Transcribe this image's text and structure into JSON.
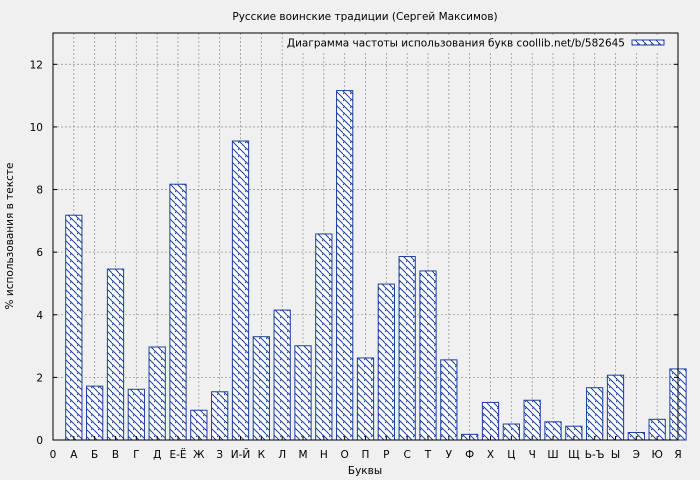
{
  "chart_data": {
    "type": "bar",
    "title": "Русские воинские традиции (Сергей Максимов)",
    "xlabel": "Буквы",
    "ylabel": "% использования в тексте",
    "legend": {
      "label": "Диаграмма частоты использования букв coollib.net/b/582645",
      "position": "top-right"
    },
    "x_first_tick": "0",
    "ylim": [
      0,
      13
    ],
    "yticks": [
      0,
      2,
      4,
      6,
      8,
      10,
      12
    ],
    "grid": true,
    "categories": [
      "А",
      "Б",
      "В",
      "Г",
      "Д",
      "Е-Ё",
      "Ж",
      "З",
      "И-Й",
      "К",
      "Л",
      "М",
      "Н",
      "О",
      "П",
      "Р",
      "С",
      "Т",
      "У",
      "Ф",
      "Х",
      "Ц",
      "Ч",
      "Ш",
      "Щ",
      "Ь-Ъ",
      "Ы",
      "Э",
      "Ю",
      "Я"
    ],
    "values": [
      7.18,
      1.72,
      5.46,
      1.62,
      2.97,
      8.17,
      0.95,
      1.54,
      9.55,
      3.3,
      4.15,
      3.01,
      6.58,
      11.16,
      2.62,
      4.98,
      5.86,
      5.4,
      2.56,
      0.18,
      1.2,
      0.51,
      1.27,
      0.58,
      0.44,
      1.67,
      2.07,
      0.24,
      0.66,
      2.27
    ]
  },
  "colors": {
    "bar_stroke": "#1a3fa0",
    "plot_bg": "#f0f0f0",
    "grid": "#999999"
  }
}
